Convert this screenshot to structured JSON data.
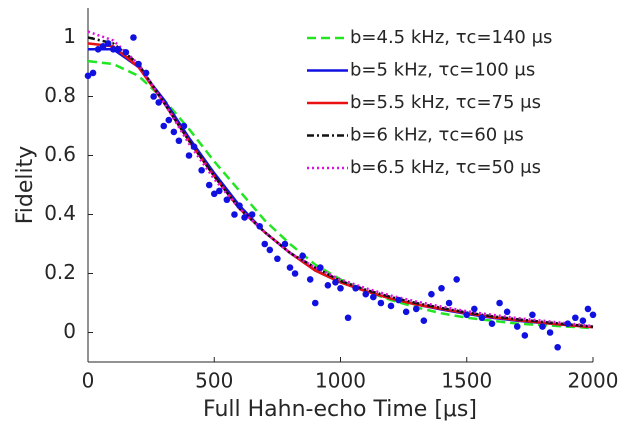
{
  "chart_data": {
    "type": "line",
    "xlabel": "Full Hahn-echo Time [μs]",
    "ylabel": "Fidelity",
    "xlim": [
      0,
      2000
    ],
    "ylim": [
      -0.1,
      1.1
    ],
    "xticks": [
      0,
      500,
      1000,
      1500,
      2000
    ],
    "yticks": [
      0,
      0.2,
      0.4,
      0.6,
      0.8,
      1
    ],
    "legend": "upper right",
    "x": [
      0,
      100,
      200,
      300,
      400,
      500,
      600,
      700,
      800,
      900,
      1000,
      1100,
      1200,
      1300,
      1400,
      1500,
      1600,
      1700,
      1800,
      1900,
      2000
    ],
    "series": [
      {
        "name": "b=4.5 kHz, τc=140 μs",
        "color": "#22e622",
        "dash": "dashed",
        "values": [
          0.92,
          0.91,
          0.87,
          0.79,
          0.69,
          0.58,
          0.48,
          0.38,
          0.3,
          0.23,
          0.18,
          0.14,
          0.11,
          0.085,
          0.065,
          0.05,
          0.04,
          0.03,
          0.025,
          0.02,
          0.015
        ]
      },
      {
        "name": "b=5 kHz, τc=100 μs",
        "color": "#1010e0",
        "dash": "solid",
        "values": [
          0.96,
          0.96,
          0.9,
          0.79,
          0.66,
          0.54,
          0.43,
          0.34,
          0.27,
          0.21,
          0.17,
          0.14,
          0.115,
          0.095,
          0.078,
          0.063,
          0.05,
          0.04,
          0.032,
          0.025,
          0.018
        ]
      },
      {
        "name": "b=5.5 kHz, τc=75 μs",
        "color": "#e81010",
        "dash": "solid",
        "values": [
          0.98,
          0.97,
          0.9,
          0.78,
          0.65,
          0.53,
          0.42,
          0.34,
          0.27,
          0.21,
          0.17,
          0.14,
          0.115,
          0.095,
          0.08,
          0.065,
          0.052,
          0.042,
          0.033,
          0.025,
          0.018
        ]
      },
      {
        "name": "b=6 kHz, τc=60 μs",
        "color": "#111111",
        "dash": "dashdot",
        "values": [
          1.0,
          0.98,
          0.91,
          0.78,
          0.65,
          0.53,
          0.42,
          0.34,
          0.27,
          0.22,
          0.175,
          0.145,
          0.12,
          0.1,
          0.083,
          0.068,
          0.055,
          0.045,
          0.036,
          0.028,
          0.02
        ]
      },
      {
        "name": "b=6.5 kHz, τc=50 μs",
        "color": "#e010e0",
        "dash": "dotted",
        "values": [
          1.02,
          0.99,
          0.91,
          0.78,
          0.64,
          0.52,
          0.42,
          0.34,
          0.27,
          0.22,
          0.18,
          0.15,
          0.125,
          0.105,
          0.088,
          0.072,
          0.06,
          0.049,
          0.04,
          0.031,
          0.022
        ]
      }
    ],
    "points": {
      "type": "scatter",
      "color": "#1010e0",
      "x": [
        0,
        20,
        40,
        60,
        80,
        100,
        120,
        150,
        180,
        200,
        230,
        260,
        280,
        300,
        320,
        340,
        360,
        380,
        400,
        420,
        450,
        480,
        500,
        520,
        550,
        580,
        600,
        620,
        650,
        680,
        700,
        720,
        750,
        780,
        800,
        820,
        850,
        880,
        900,
        920,
        950,
        980,
        1000,
        1030,
        1060,
        1100,
        1130,
        1160,
        1200,
        1230,
        1260,
        1300,
        1330,
        1360,
        1400,
        1430,
        1460,
        1500,
        1530,
        1560,
        1600,
        1630,
        1660,
        1700,
        1730,
        1760,
        1800,
        1830,
        1860,
        1900,
        1930,
        1960,
        1980,
        2000
      ],
      "y": [
        0.87,
        0.88,
        0.96,
        0.97,
        0.98,
        0.96,
        0.96,
        0.95,
        1.0,
        0.91,
        0.88,
        0.8,
        0.78,
        0.7,
        0.72,
        0.68,
        0.65,
        0.7,
        0.6,
        0.63,
        0.55,
        0.5,
        0.47,
        0.48,
        0.45,
        0.4,
        0.43,
        0.39,
        0.4,
        0.36,
        0.3,
        0.28,
        0.25,
        0.3,
        0.22,
        0.2,
        0.26,
        0.18,
        0.1,
        0.22,
        0.16,
        0.17,
        0.15,
        0.05,
        0.15,
        0.13,
        0.12,
        0.1,
        0.09,
        0.11,
        0.07,
        0.08,
        0.04,
        0.13,
        0.15,
        0.1,
        0.18,
        0.06,
        0.08,
        0.05,
        0.03,
        0.1,
        0.07,
        0.02,
        -0.01,
        0.06,
        0.02,
        0.0,
        -0.05,
        0.03,
        0.05,
        0.04,
        0.08,
        0.06
      ]
    }
  }
}
